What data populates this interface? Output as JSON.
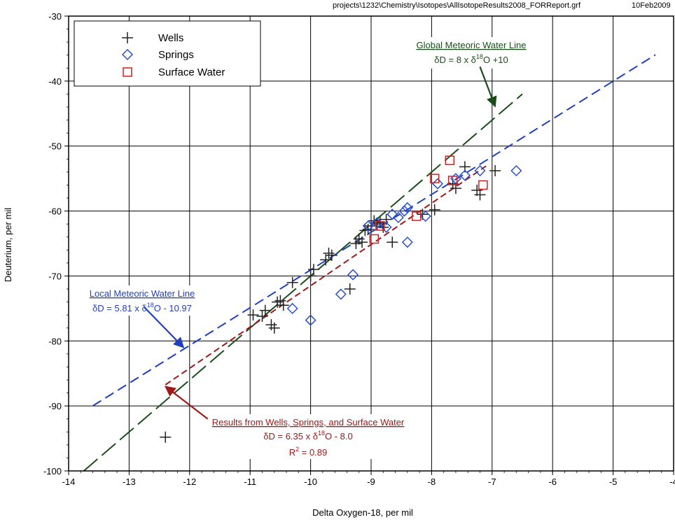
{
  "header": {
    "file_path": "projects\\1232\\Chemistry\\Isotopes\\AllIsotopeResults2008_FORReport.grf",
    "date": "10Feb2009"
  },
  "colors": {
    "wells": "#222222",
    "springs": "#2a4fd0",
    "surface": "#d02020",
    "gmwl": "#1a4d1a",
    "lmwl": "#2040c0",
    "fit": "#a01818"
  },
  "chart_data": {
    "type": "scatter",
    "xlabel": "Delta Oxygen-18, per mil",
    "ylabel": "Deuterium, per mil",
    "xlim": [
      -14,
      -4
    ],
    "ylim": [
      -100,
      -30
    ],
    "x_ticks": [
      "-14",
      "-13",
      "-12",
      "-11",
      "-10",
      "-9",
      "-8",
      "-7",
      "-6",
      "-5",
      "-4"
    ],
    "y_ticks": [
      "-30",
      "-40",
      "-50",
      "-60",
      "-70",
      "-80",
      "-90",
      "-100"
    ],
    "grid": true,
    "legend_position": "top-left",
    "legend": [
      "Wells",
      "Springs",
      "Surface Water"
    ],
    "series": [
      {
        "name": "Wells",
        "marker": "plus",
        "color_key": "wells",
        "points": [
          [
            -12.4,
            -94.8
          ],
          [
            -10.95,
            -76.0
          ],
          [
            -10.8,
            -76.2
          ],
          [
            -10.75,
            -75.3
          ],
          [
            -10.65,
            -77.5
          ],
          [
            -10.6,
            -78.0
          ],
          [
            -10.55,
            -74.0
          ],
          [
            -10.45,
            -74.5
          ],
          [
            -10.5,
            -73.8
          ],
          [
            -10.3,
            -71.0
          ],
          [
            -10.0,
            -70.0
          ],
          [
            -9.95,
            -69.0
          ],
          [
            -9.75,
            -67.5
          ],
          [
            -9.7,
            -66.5
          ],
          [
            -9.65,
            -66.8
          ],
          [
            -9.35,
            -72.0
          ],
          [
            -9.25,
            -65.0
          ],
          [
            -9.2,
            -64.3
          ],
          [
            -9.15,
            -64.8
          ],
          [
            -9.1,
            -63.0
          ],
          [
            -9.05,
            -62.8
          ],
          [
            -9.0,
            -62.3
          ],
          [
            -8.95,
            -61.5
          ],
          [
            -8.9,
            -62.0
          ],
          [
            -8.85,
            -61.8
          ],
          [
            -8.8,
            -62.5
          ],
          [
            -8.75,
            -61.3
          ],
          [
            -8.65,
            -64.8
          ],
          [
            -8.15,
            -60.5
          ],
          [
            -7.95,
            -59.8
          ],
          [
            -7.65,
            -55.8
          ],
          [
            -7.6,
            -56.5
          ],
          [
            -7.45,
            -53.2
          ],
          [
            -7.2,
            -57.5
          ],
          [
            -7.25,
            -56.8
          ],
          [
            -6.95,
            -53.8
          ]
        ]
      },
      {
        "name": "Springs",
        "marker": "diamond",
        "color_key": "springs",
        "points": [
          [
            -10.3,
            -75.0
          ],
          [
            -10.0,
            -76.8
          ],
          [
            -9.5,
            -72.8
          ],
          [
            -9.3,
            -69.8
          ],
          [
            -9.05,
            -62.3
          ],
          [
            -8.9,
            -61.8
          ],
          [
            -8.75,
            -62.5
          ],
          [
            -8.65,
            -60.5
          ],
          [
            -8.55,
            -61.0
          ],
          [
            -8.45,
            -60.0
          ],
          [
            -8.4,
            -59.5
          ],
          [
            -8.4,
            -64.8
          ],
          [
            -8.1,
            -60.8
          ],
          [
            -7.9,
            -55.8
          ],
          [
            -7.6,
            -55.0
          ],
          [
            -7.45,
            -54.5
          ],
          [
            -7.2,
            -53.8
          ],
          [
            -6.6,
            -53.8
          ]
        ]
      },
      {
        "name": "Surface Water",
        "marker": "square",
        "color_key": "surface",
        "points": [
          [
            -8.95,
            -64.3
          ],
          [
            -8.85,
            -62.3
          ],
          [
            -8.25,
            -60.8
          ],
          [
            -7.95,
            -55.0
          ],
          [
            -7.7,
            -52.2
          ],
          [
            -7.65,
            -55.3
          ],
          [
            -7.15,
            -56.0
          ]
        ]
      }
    ],
    "lines": [
      {
        "id": "gmwl",
        "name": "Global Meteoric Water Line",
        "slope": 8,
        "intercept": 10,
        "x_range": [
          -13.75,
          -6.5
        ],
        "color_key": "gmwl",
        "dash": "26 8"
      },
      {
        "id": "lmwl",
        "name": "Local Meteoric Water Line",
        "slope": 5.81,
        "intercept": -10.97,
        "x_range": [
          -13.6,
          -4.3
        ],
        "color_key": "lmwl",
        "dash": "14 7"
      },
      {
        "id": "fit",
        "name": "Results from Wells, Springs, and Surface Water",
        "slope": 6.35,
        "intercept": -8.0,
        "x_range": [
          -12.4,
          -7.1
        ],
        "color_key": "fit",
        "dash": "9 5"
      }
    ],
    "annotations": {
      "gmwl": {
        "title": "Global Meteoric Water Line",
        "eq_prefix": "δD = 8 x δ",
        "eq_sup": "18",
        "eq_suffix": "O +10",
        "arrow_from": [
          -7.2,
          -37.8
        ],
        "arrow_to": [
          -6.95,
          -43.9
        ]
      },
      "lmwl": {
        "title": "Local Meteoric Water Line",
        "eq_prefix": "δD = 5.81 x δ",
        "eq_sup": "18",
        "eq_suffix": "O - 10.97",
        "arrow_from": [
          -12.75,
          -74.8
        ],
        "arrow_to": [
          -12.1,
          -81.0
        ]
      },
      "fit": {
        "title": "Results from Wells, Springs, and Surface Water",
        "eq_prefix": "δD = 6.35 x δ",
        "eq_sup": "18",
        "eq_suffix": "O - 8.0",
        "r2_prefix": "R",
        "r2_sup": "2",
        "r2_suffix": " = 0.89",
        "arrow_from": [
          -11.7,
          -92.0
        ],
        "arrow_to": [
          -12.4,
          -87.0
        ]
      }
    }
  }
}
